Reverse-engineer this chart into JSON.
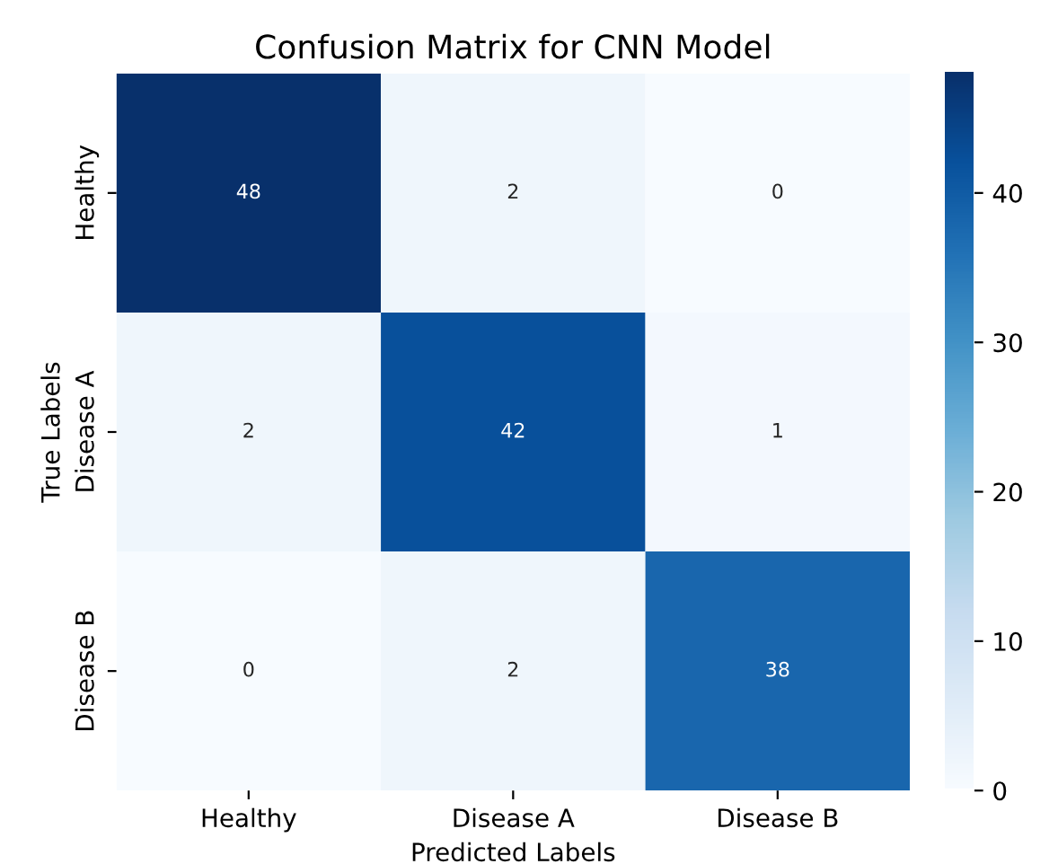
{
  "chart_data": {
    "type": "heatmap",
    "title": "Confusion Matrix for CNN Model",
    "xlabel": "Predicted Labels",
    "ylabel": "True Labels",
    "categories": [
      "Healthy",
      "Disease A",
      "Disease B"
    ],
    "y_categories": [
      "Healthy",
      "Disease A",
      "Disease B"
    ],
    "cells": [
      [
        48,
        2,
        0
      ],
      [
        2,
        42,
        1
      ],
      [
        0,
        2,
        38
      ]
    ],
    "clim": [
      0,
      48
    ],
    "cticks": [
      0,
      10,
      20,
      30,
      40
    ],
    "data_labels": true
  }
}
